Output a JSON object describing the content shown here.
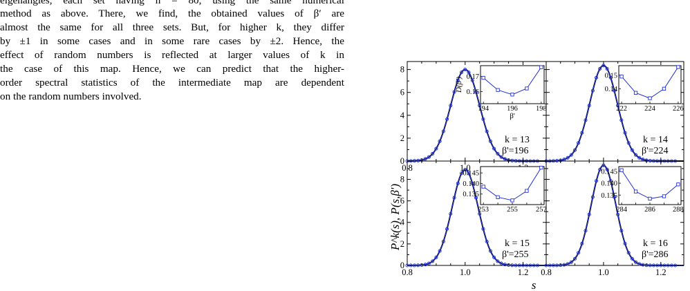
{
  "paragraph": {
    "lines": [
      "eigenangles, each set having n = 80, using the same numerical",
      "method as above. There, we find, the obtained values of β′ are",
      "almost the same for all three sets. But, for higher k, they differ",
      "by ±1 in some cases and in some rare cases by ±2. Hence, the",
      "effect of random numbers is reflected at larger values of k in",
      "the case of this map. Hence, we can predict that the higher-",
      "order spectral statistics of the intermediate map are dependent",
      "on the random numbers involved."
    ]
  },
  "figure": {
    "ylabel": "P^k(s), P(s,β')",
    "xlabel": "s",
    "panels": [
      {
        "k_label": "k = 13",
        "beta_label": "β'=196"
      },
      {
        "k_label": "k = 14",
        "beta_label": "β'=224"
      },
      {
        "k_label": "k = 15",
        "beta_label": "β'=255"
      },
      {
        "k_label": "k = 16",
        "beta_label": "β'=286"
      }
    ]
  },
  "chart_data": [
    {
      "type": "line",
      "panel": "k=13",
      "xlim": [
        0.8,
        1.28
      ],
      "ylim": [
        0,
        8.7
      ],
      "x_ticks": [
        "0.8",
        "1.0",
        "1.2"
      ],
      "y_ticks": [
        "0",
        "2",
        "4",
        "6",
        "8"
      ],
      "curve": {
        "peak_x": 1.0,
        "peak_y": 8.0,
        "sigma": 0.05
      },
      "annotations": [
        "k = 13",
        "β'=196"
      ],
      "inset": {
        "type": "line",
        "ylabel": "D(β')",
        "xlabel": "β'",
        "x": [
          194,
          195,
          196,
          197,
          198
        ],
        "y": [
          0.169,
          0.161,
          0.158,
          0.162,
          0.176
        ],
        "xlim": [
          193.8,
          198.2
        ],
        "ylim": [
          0.152,
          0.177
        ],
        "x_ticks": [
          "194",
          "196",
          "198"
        ],
        "y_ticks": [
          "0.16",
          "0.17"
        ]
      }
    },
    {
      "type": "line",
      "panel": "k=14",
      "xlim": [
        0.8,
        1.28
      ],
      "ylim": [
        0,
        8.7
      ],
      "x_ticks": [],
      "y_ticks": [],
      "curve": {
        "peak_x": 1.0,
        "peak_y": 8.35,
        "sigma": 0.048
      },
      "annotations": [
        "k = 14",
        "β'=224"
      ],
      "inset": {
        "type": "line",
        "x": [
          222,
          223,
          224,
          225,
          226
        ],
        "y": [
          0.149,
          0.137,
          0.133,
          0.14,
          0.156
        ],
        "xlim": [
          221.8,
          226.2
        ],
        "ylim": [
          0.129,
          0.157
        ],
        "x_ticks": [
          "222",
          "224",
          "226"
        ],
        "y_ticks": [
          "0.14",
          "0.15"
        ]
      }
    },
    {
      "type": "line",
      "panel": "k=15",
      "xlim": [
        0.8,
        1.28
      ],
      "ylim": [
        0,
        9.7
      ],
      "x_ticks": [
        "0.8",
        "1.0",
        "1.2"
      ],
      "y_ticks": [
        "0",
        "2",
        "4",
        "6",
        "8"
      ],
      "curve": {
        "peak_x": 1.0,
        "peak_y": 8.9,
        "sigma": 0.045
      },
      "annotations": [
        "k = 15",
        "β'=255"
      ],
      "inset": {
        "type": "line",
        "x": [
          253,
          254,
          255,
          256,
          257
        ],
        "y": [
          0.1385,
          0.1335,
          0.132,
          0.1365,
          0.1475
        ],
        "xlim": [
          252.8,
          257.2
        ],
        "ylim": [
          0.13,
          0.148
        ],
        "x_ticks": [
          "253",
          "255",
          "257"
        ],
        "y_ticks": [
          "0.135",
          "0.140",
          "0.145"
        ]
      }
    },
    {
      "type": "line",
      "panel": "k=16",
      "xlim": [
        0.8,
        1.28
      ],
      "ylim": [
        0,
        9.7
      ],
      "x_ticks": [
        "0.8",
        "1.0",
        "1.2"
      ],
      "y_ticks": [],
      "curve": {
        "peak_x": 1.0,
        "peak_y": 9.3,
        "sigma": 0.043
      },
      "annotations": [
        "k = 16",
        "β'=286"
      ],
      "inset": {
        "type": "line",
        "x": [
          284,
          285,
          286,
          287,
          288
        ],
        "y": [
          0.1455,
          0.1365,
          0.1335,
          0.1345,
          0.1395
        ],
        "xlim": [
          283.8,
          288.2
        ],
        "ylim": [
          0.131,
          0.147
        ],
        "x_ticks": [
          "284",
          "286",
          "288"
        ],
        "y_ticks": [
          "0.135",
          "0.140",
          "0.145"
        ]
      }
    }
  ]
}
